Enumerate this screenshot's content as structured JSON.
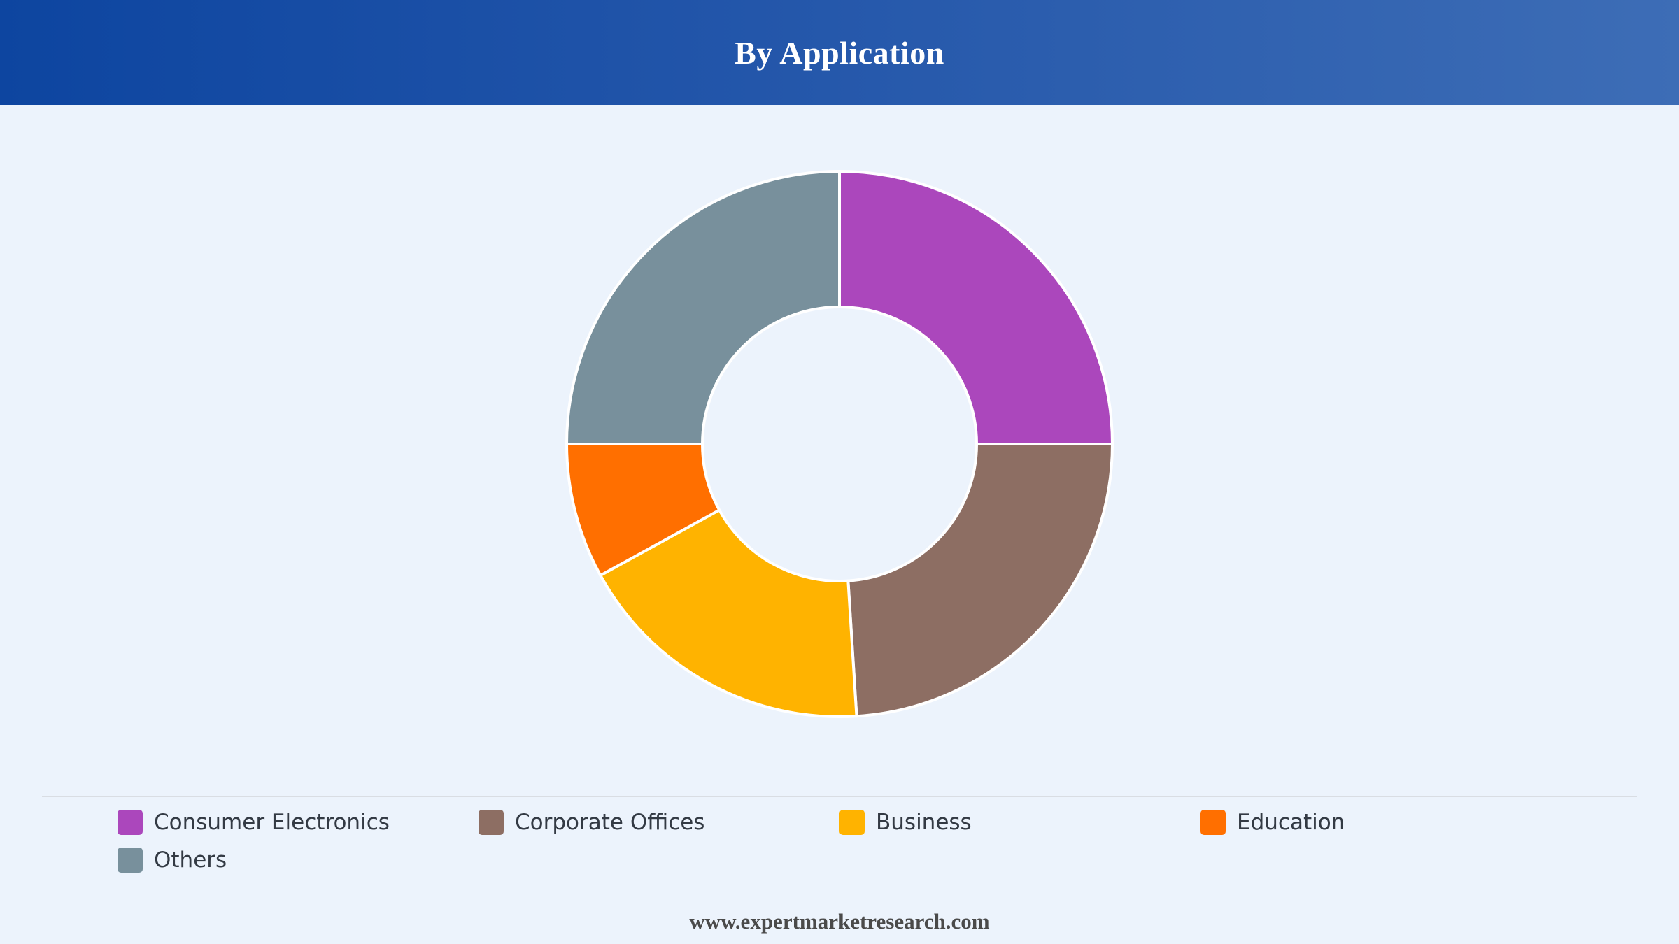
{
  "header": {
    "title": "By Application"
  },
  "chart_data": {
    "type": "pie",
    "title": "By Application",
    "donut": true,
    "legend_position": "bottom",
    "categories": [
      "Consumer Electronics",
      "Corporate Offices",
      "Business",
      "Education",
      "Others"
    ],
    "values": [
      25,
      24,
      18,
      8,
      25
    ],
    "unit": "%",
    "colors": [
      "#ab47bc",
      "#8d6e63",
      "#ffb300",
      "#ff6f00",
      "#78909c"
    ],
    "start_angle_deg": 0,
    "direction": "clockwise"
  },
  "footer": {
    "text": "www.expertmarketresearch.com"
  }
}
